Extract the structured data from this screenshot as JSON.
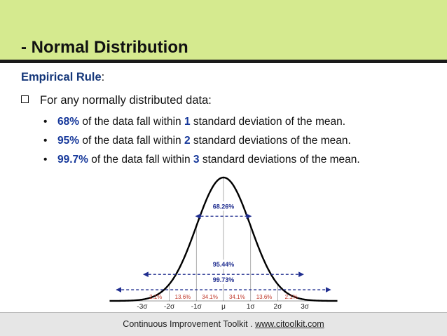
{
  "title": "- Normal Distribution",
  "subheading": {
    "label": "Empirical Rule",
    "colon": ":"
  },
  "question": "For any normally distributed data:",
  "bullets": [
    {
      "pct": "68%",
      "pre": "of the data fall within",
      "n": "1",
      "post": "standard deviation of the mean."
    },
    {
      "pct": "95%",
      "pre": "of the data fall within",
      "n": "2",
      "post": "standard deviations of the mean."
    },
    {
      "pct": "99.7%",
      "pre": "of the data fall within",
      "n": "3",
      "post": "standard deviations of the mean."
    }
  ],
  "chart_data": {
    "type": "line",
    "x_ticks": [
      "-3σ",
      "-2σ",
      "-1σ",
      "μ",
      "1σ",
      "2σ",
      "3σ"
    ],
    "bands": [
      "2.1%",
      "13.6%",
      "34.1%",
      "34.1%",
      "13.6%",
      "2.1%"
    ],
    "intervals": [
      {
        "label": "99.73%",
        "from": -3,
        "to": 3
      },
      {
        "label": "95.44%",
        "from": -2,
        "to": 2
      },
      {
        "label": "68.26%",
        "from": -1,
        "to": 1
      }
    ],
    "colors": {
      "curve": "#000000",
      "intervals": "#1f2d8f",
      "bands": "#c0392b"
    }
  },
  "footer": {
    "prefix": "Continuous Improvement Toolkit . ",
    "site": "www.citoolkit.com"
  }
}
